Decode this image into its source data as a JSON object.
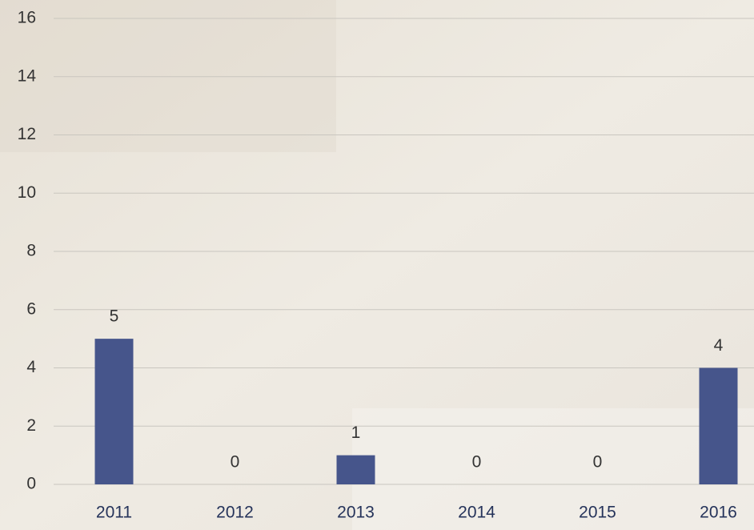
{
  "chart_data": {
    "type": "bar",
    "categories": [
      "2011",
      "2012",
      "2013",
      "2014",
      "2015",
      "2016"
    ],
    "values": [
      5,
      0,
      1,
      0,
      0,
      4
    ],
    "color": "#46558b",
    "ylim": [
      0,
      16
    ],
    "yticks": [
      0,
      2,
      4,
      6,
      8,
      10,
      12,
      14,
      16
    ],
    "grid": true
  }
}
